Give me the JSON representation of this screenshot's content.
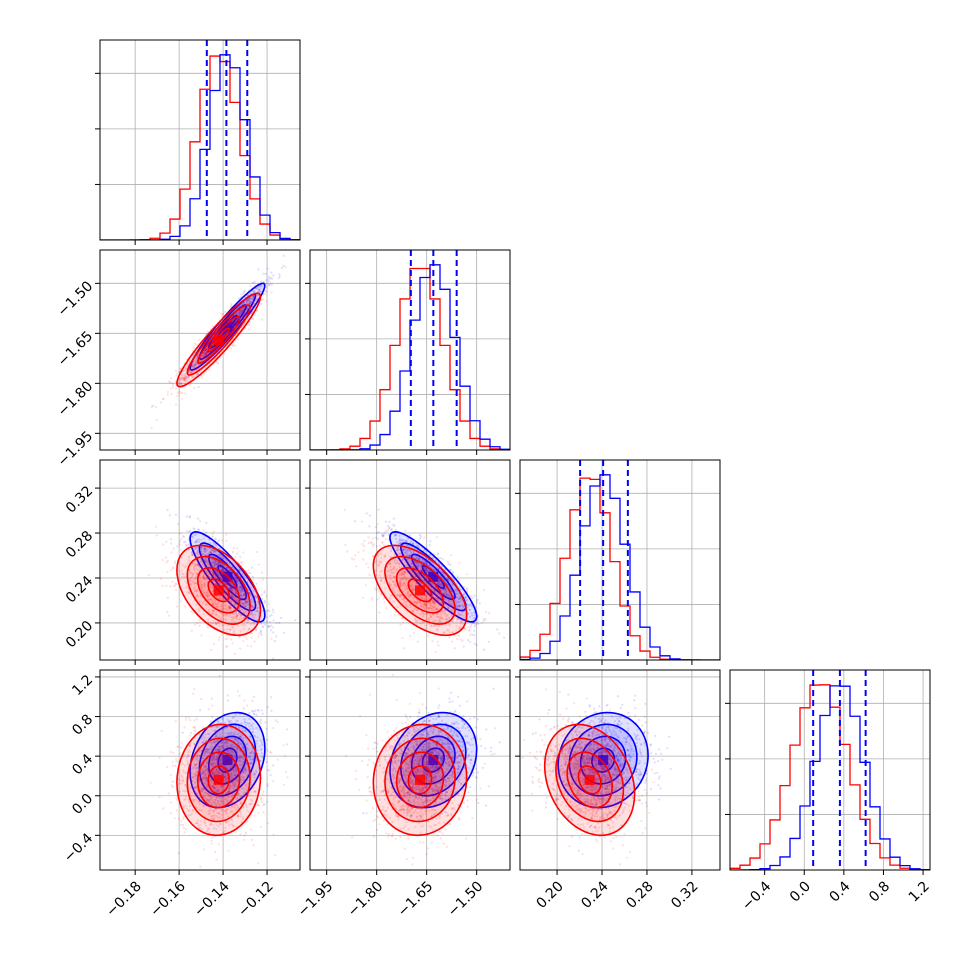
{
  "chart_data": {
    "type": "scatter",
    "subtype": "corner plot (pairwise 2D density contours with 1D histograms)",
    "grid": true,
    "parameters": [
      {
        "ticks": [
          -0.18,
          -0.16,
          -0.14,
          -0.12
        ],
        "tick_labels": [
          "−0.18",
          "−0.16",
          "−0.14",
          "−0.12"
        ],
        "range": [
          -0.196,
          -0.105
        ]
      },
      {
        "ticks": [
          -1.95,
          -1.8,
          -1.65,
          -1.5
        ],
        "tick_labels": [
          "−1.95",
          "−1.80",
          "−1.65",
          "−1.50"
        ],
        "range": [
          -2.0,
          -1.4
        ]
      },
      {
        "ticks": [
          0.2,
          0.24,
          0.28,
          0.32
        ],
        "tick_labels": [
          "0.20",
          "0.24",
          "0.28",
          "0.32"
        ],
        "range": [
          0.167,
          0.345
        ]
      },
      {
        "ticks": [
          -0.4,
          0.0,
          0.4,
          0.8,
          1.2
        ],
        "tick_labels": [
          "−0.4",
          "0.0",
          "0.4",
          "0.8",
          "1.2"
        ],
        "range": [
          -0.75,
          1.27
        ]
      }
    ],
    "series": [
      {
        "color": "#0000ff",
        "mean": [
          -0.138,
          -1.63,
          0.241,
          0.36
        ],
        "std": [
          0.0085,
          0.065,
          0.02,
          0.24
        ],
        "corr": [
          [
            1,
            0.95,
            -0.85,
            0.25
          ],
          [
            0.95,
            1,
            -0.88,
            0.22
          ],
          [
            -0.85,
            -0.88,
            1,
            0.1
          ],
          [
            0.25,
            0.22,
            0.1,
            1
          ]
        ],
        "quantiles": [
          [
            -0.1474,
            -0.1385,
            -0.129
          ],
          [
            -1.6975,
            -1.63,
            -1.56
          ],
          [
            0.2205,
            0.241,
            0.263
          ],
          [
            0.09,
            0.36,
            0.62
          ]
        ],
        "quantile_line_color": "#0000ff"
      },
      {
        "color": "#ff0000",
        "mean": [
          -0.142,
          -1.67,
          0.229,
          0.16
        ],
        "std": [
          0.0095,
          0.07,
          0.02,
          0.28
        ],
        "corr": [
          [
            1,
            0.93,
            -0.45,
            0.05
          ],
          [
            0.93,
            1,
            -0.55,
            0.05
          ],
          [
            -0.45,
            -0.55,
            1,
            -0.25
          ],
          [
            0.05,
            0.05,
            -0.25,
            1
          ]
        ]
      }
    ]
  }
}
